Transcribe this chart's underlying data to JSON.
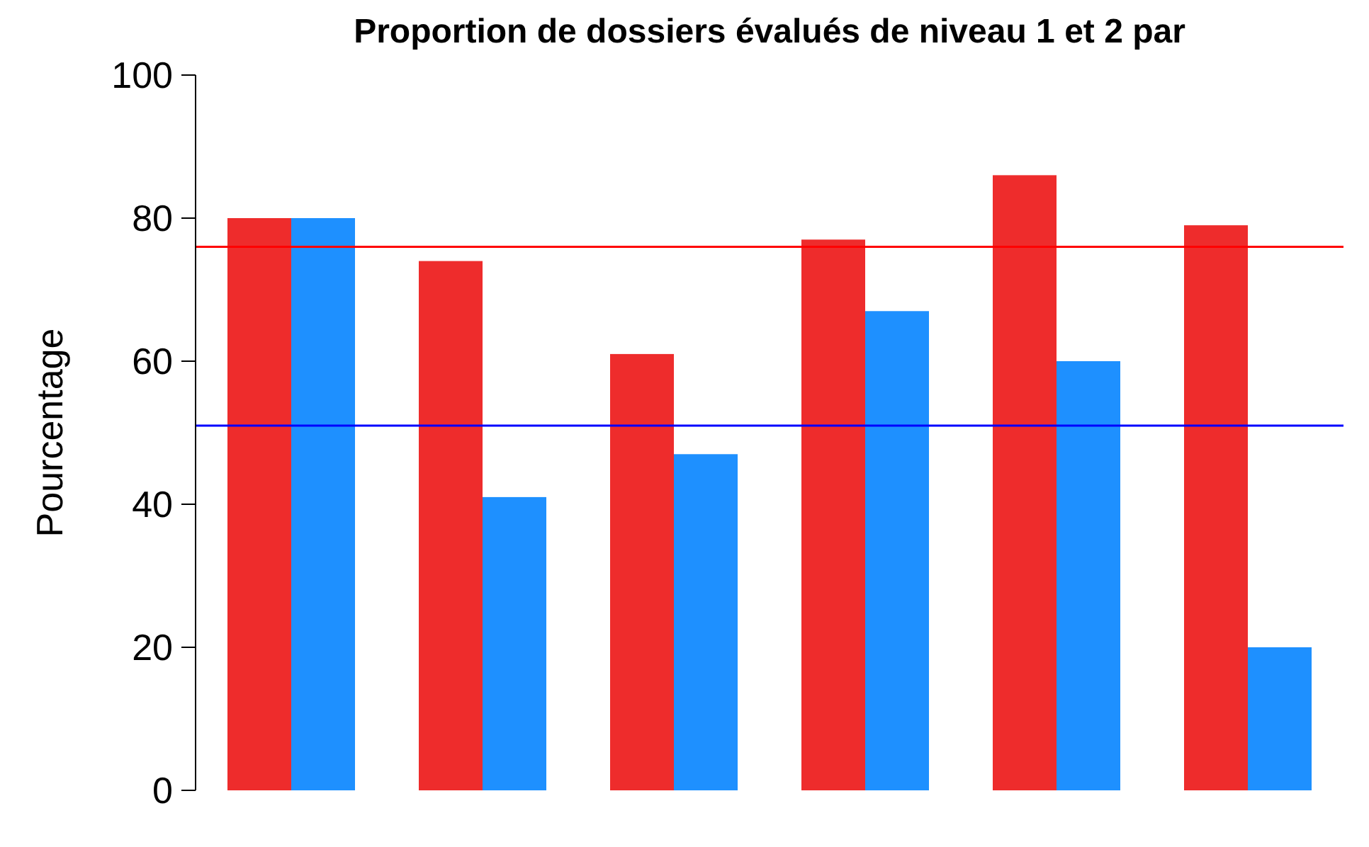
{
  "chart_data": {
    "type": "bar",
    "title": "Proportion de dossiers évalués de niveau 1 et 2 par",
    "ylabel": "Pourcentage",
    "categories": [
      null,
      null,
      null,
      null,
      null,
      null
    ],
    "series": [
      {
        "color": "#ee2c2c",
        "values": [
          80,
          74,
          61,
          77,
          86,
          79
        ]
      },
      {
        "color": "#1e90ff",
        "values": [
          80,
          41,
          47,
          67,
          60,
          20
        ]
      }
    ],
    "ylim": [
      0,
      100
    ],
    "yticks": [
      0,
      20,
      40,
      60,
      80,
      100
    ],
    "ref_lines": [
      {
        "axis": "y",
        "value": 76,
        "color": "#ff0000"
      },
      {
        "axis": "y",
        "value": 51,
        "color": "#0000ff"
      }
    ]
  }
}
